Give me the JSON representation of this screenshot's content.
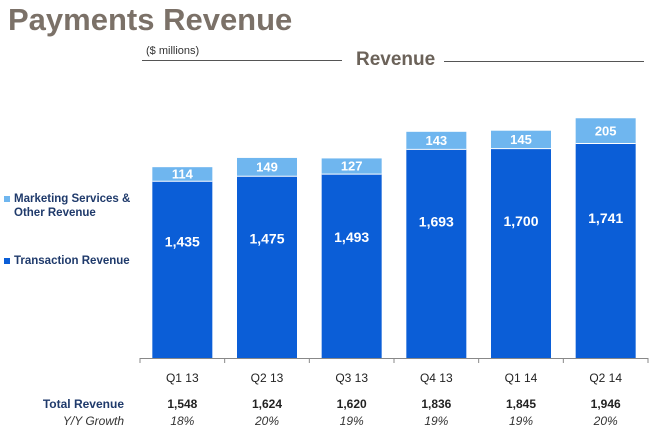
{
  "page": {
    "title": "Payments Revenue",
    "units": "($ millions)",
    "chart_title": "Revenue"
  },
  "colors": {
    "transaction": "#0b5ed7",
    "marketing": "#6fb6ef",
    "title": "#7b7168"
  },
  "legend": [
    {
      "label": "Marketing Services & Other Revenue",
      "color": "#6fb6ef"
    },
    {
      "label": "Transaction Revenue",
      "color": "#0b5ed7"
    }
  ],
  "chart_data": {
    "type": "bar",
    "stacked": true,
    "title": "Revenue",
    "categories": [
      "Q1 13",
      "Q2 13",
      "Q3 13",
      "Q4 13",
      "Q1 14",
      "Q2 14"
    ],
    "series": [
      {
        "name": "Transaction Revenue",
        "values": [
          1435,
          1475,
          1493,
          1693,
          1700,
          1741
        ]
      },
      {
        "name": "Marketing Services & Other Revenue",
        "values": [
          114,
          149,
          127,
          143,
          145,
          205
        ]
      }
    ],
    "ylim": [
      0,
      2000
    ],
    "grid": false,
    "legend_position": "left"
  },
  "table": {
    "total_label": "Total Revenue",
    "growth_label": "Y/Y Growth",
    "totals": [
      "1,548",
      "1,624",
      "1,620",
      "1,836",
      "1,845",
      "1,946"
    ],
    "growth": [
      "18%",
      "20%",
      "19%",
      "19%",
      "19%",
      "20%"
    ]
  }
}
